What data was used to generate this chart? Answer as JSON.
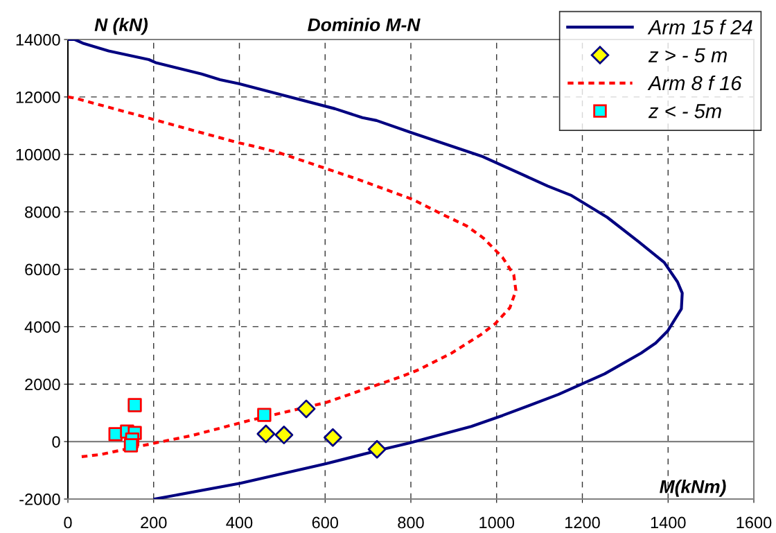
{
  "chart_data": {
    "type": "line",
    "title": "Dominio M-N",
    "xlabel": "M(kNm)",
    "ylabel": "N (kN)",
    "xlim": [
      0,
      1600
    ],
    "xticks": [
      0,
      200,
      400,
      600,
      800,
      1000,
      1200,
      1400,
      1600
    ],
    "ylim": [
      -2000,
      14000
    ],
    "yticks": [
      -2000,
      0,
      2000,
      4000,
      6000,
      8000,
      10000,
      12000,
      14000
    ],
    "grid": true,
    "legend": "top right",
    "ref_lines": [
      {
        "axis": "y",
        "value": 0,
        "color": "#808080",
        "line_style": "solid"
      }
    ],
    "series": [
      {
        "name": "Arm 15 f 24",
        "color": "#000080",
        "line_style": "solid",
        "marker": "none",
        "x": [
          0,
          16,
          37,
          95,
          189,
          204,
          312,
          355,
          399,
          492,
          623,
          687,
          720,
          803,
          968,
          1119,
          1173,
          1258,
          1331,
          1391,
          1422,
          1433,
          1431,
          1399,
          1371,
          1337,
          1252,
          1144,
          1014,
          941,
          796,
          731,
          602,
          402,
          203
        ],
        "values": [
          14000,
          14000,
          13860,
          13600,
          13300,
          13200,
          12800,
          12600,
          12460,
          12100,
          11590,
          11280,
          11180,
          10750,
          9920,
          8900,
          8580,
          7810,
          6960,
          6240,
          5560,
          5170,
          4620,
          3850,
          3430,
          3080,
          2360,
          1640,
          910,
          530,
          -50,
          -280,
          -770,
          -1450,
          -2000
        ]
      },
      {
        "name": "z > - 5 m",
        "type": "scatter",
        "color": "#ffff00",
        "marker": "diamond",
        "x": [
          462,
          504,
          556,
          618,
          721
        ],
        "values": [
          270,
          230,
          1140,
          140,
          -270
        ]
      },
      {
        "name": "Arm 8 f 16",
        "color": "#ff0000",
        "line_style": "dashed",
        "marker": "none",
        "x": [
          0,
          16,
          204,
          391,
          441,
          492,
          673,
          803,
          875,
          929,
          969,
          1014,
          1040,
          1045,
          1031,
          997,
          963,
          895,
          816,
          779,
          602,
          418,
          289,
          203,
          76,
          30
        ],
        "values": [
          12000,
          11960,
          11200,
          10430,
          10260,
          10060,
          9150,
          8440,
          7900,
          7520,
          7090,
          6410,
          5810,
          5260,
          4660,
          4110,
          3720,
          3080,
          2490,
          2270,
          1360,
          715,
          210,
          -50,
          -450,
          -530
        ]
      },
      {
        "name": "z < - 5m",
        "type": "scatter",
        "color": "#00ffff",
        "marker": "square",
        "x": [
          111,
          138,
          156,
          156,
          150,
          147,
          458
        ],
        "values": [
          260,
          350,
          300,
          1270,
          70,
          -130,
          930
        ]
      }
    ]
  }
}
